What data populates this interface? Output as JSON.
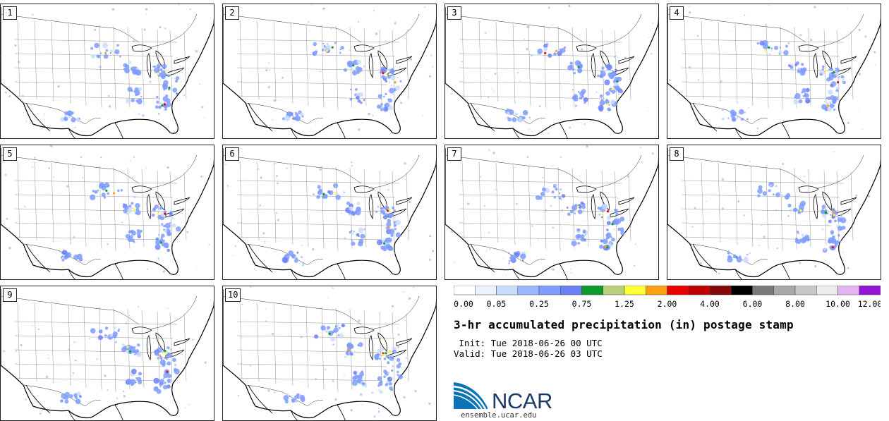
{
  "members": [
    "1",
    "2",
    "3",
    "4",
    "5",
    "6",
    "7",
    "8",
    "9",
    "10"
  ],
  "legend": {
    "colors": [
      "#ffffff",
      "#eaf2ff",
      "#cadcff",
      "#9ab8ff",
      "#7f9cff",
      "#6a80f5",
      "#0e9b2e",
      "#b7d07a",
      "#ffff33",
      "#ff9f14",
      "#ee0000",
      "#c00000",
      "#860808",
      "#000000",
      "#7a7a7a",
      "#a8a8a8",
      "#c8c8c8",
      "#ececec",
      "#e2b5f2",
      "#9414d6"
    ],
    "labels": [
      "0.00",
      "0.05",
      "0.25",
      "0.75",
      "1.25",
      "2.00",
      "4.00",
      "6.00",
      "8.00",
      "10.00",
      "12.00"
    ]
  },
  "title": "3-hr accumulated precipitation (in) postage stamp",
  "init_line": " Init: Tue 2018-06-26 00 UTC",
  "valid_line": "Valid: Tue 2018-06-26 03 UTC",
  "logo": {
    "text": "NCAR",
    "url": "ensemble.ucar.edu",
    "brand_color": "#1b3a6b",
    "accent": "#0b73b8"
  }
}
